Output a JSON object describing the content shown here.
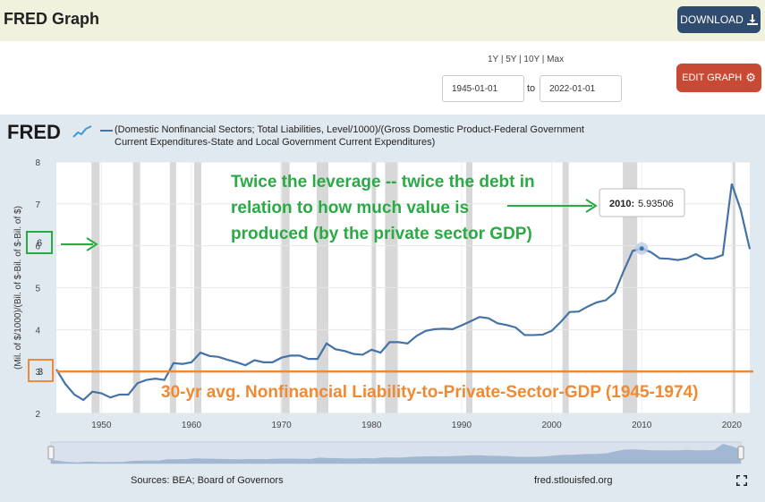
{
  "header": {
    "title": "FRED Graph",
    "download_label": "DOWNLOAD"
  },
  "controls": {
    "range_links": "1Y | 5Y | 10Y | Max",
    "start_date": "1945-01-01",
    "to_label": "to",
    "end_date": "2022-01-01",
    "edit_label": "EDIT GRAPH"
  },
  "logo": "FRED",
  "legend": {
    "line1": "(Domestic Nonfinancial Sectors; Total Liabilities, Level/1000)/(Gross Domestic Product-Federal Government",
    "line2": "Current Expenditures-State and Local Government Current Expenditures)"
  },
  "footer": {
    "sources": "Sources: BEA; Board of Governors",
    "url": "fred.stlouisfed.org"
  },
  "annotations": {
    "green_line1": "Twice the leverage -- twice the debt in",
    "green_line2": "relation to how much value is",
    "green_line3": "produced (by the private sector GDP)",
    "orange_text": "30-yr avg. Nonfinancial Liability-to-Private-Sector-GDP (1945-1974)",
    "tooltip_year": "2010:",
    "tooltip_value": "5.93506",
    "boxed_6": "6",
    "boxed_3": "3"
  },
  "colors": {
    "series": "#4572a7",
    "green": "#2aaa45",
    "orange": "#f08a32",
    "recession": "#d8d8d8"
  },
  "chart_data": {
    "type": "line",
    "ylabel": "(Mil. of $/1000)/(Bil. of $-Bil. of $-Bil. of $)",
    "xlim": [
      1945,
      2022
    ],
    "ylim": [
      2,
      8
    ],
    "yticks": [
      2,
      3,
      4,
      5,
      6,
      7,
      8
    ],
    "xticks": [
      1950,
      1960,
      1970,
      1980,
      1990,
      2000,
      2010,
      2020
    ],
    "reference_line": 3.0,
    "recessions": [
      [
        1948.9,
        1949.8
      ],
      [
        1953.5,
        1954.3
      ],
      [
        1957.6,
        1958.3
      ],
      [
        1960.3,
        1961.1
      ],
      [
        1969.9,
        1970.9
      ],
      [
        1973.9,
        1975.2
      ],
      [
        1980.0,
        1980.5
      ],
      [
        1981.5,
        1982.9
      ],
      [
        1990.5,
        1991.2
      ],
      [
        2001.2,
        2001.9
      ],
      [
        2007.9,
        2009.5
      ],
      [
        2020.1,
        2020.4
      ]
    ],
    "series": [
      {
        "x": [
          1945,
          1946,
          1947,
          1948,
          1949,
          1950,
          1951,
          1952,
          1953,
          1954,
          1955,
          1956,
          1957,
          1958,
          1959,
          1960,
          1961,
          1962,
          1963,
          1964,
          1965,
          1966,
          1967,
          1968,
          1969,
          1970,
          1971,
          1972,
          1973,
          1974,
          1975,
          1976,
          1977,
          1978,
          1979,
          1980,
          1981,
          1982,
          1983,
          1984,
          1985,
          1986,
          1987,
          1988,
          1989,
          1990,
          1991,
          1992,
          1993,
          1994,
          1995,
          1996,
          1997,
          1998,
          1999,
          2000,
          2001,
          2002,
          2003,
          2004,
          2005,
          2006,
          2007,
          2008,
          2009,
          2010,
          2011,
          2012,
          2013,
          2014,
          2015,
          2016,
          2017,
          2018,
          2019,
          2020,
          2021,
          2022
        ],
        "y": [
          3.05,
          2.7,
          2.45,
          2.32,
          2.52,
          2.48,
          2.38,
          2.45,
          2.45,
          2.72,
          2.8,
          2.83,
          2.8,
          3.2,
          3.18,
          3.22,
          3.45,
          3.37,
          3.35,
          3.28,
          3.22,
          3.15,
          3.27,
          3.22,
          3.22,
          3.33,
          3.38,
          3.38,
          3.3,
          3.3,
          3.67,
          3.53,
          3.49,
          3.42,
          3.4,
          3.52,
          3.45,
          3.7,
          3.7,
          3.67,
          3.85,
          3.97,
          4.01,
          4.02,
          4.01,
          4.1,
          4.2,
          4.3,
          4.27,
          4.15,
          4.11,
          4.05,
          3.87,
          3.87,
          3.88,
          3.97,
          4.18,
          4.42,
          4.43,
          4.55,
          4.65,
          4.7,
          4.88,
          5.4,
          5.88,
          5.935,
          5.85,
          5.7,
          5.69,
          5.66,
          5.7,
          5.8,
          5.69,
          5.7,
          5.78,
          7.48,
          6.85,
          5.92
        ]
      }
    ]
  }
}
